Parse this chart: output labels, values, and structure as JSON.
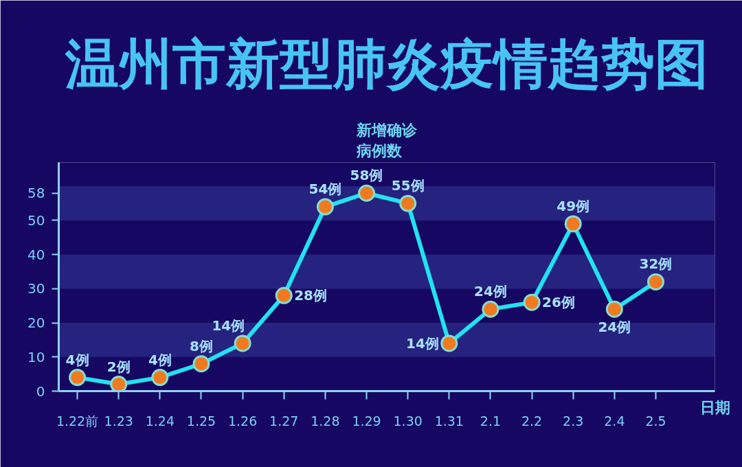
{
  "chart_data": {
    "type": "line",
    "title": "温州市新型肺炎疫情趋势图",
    "xlabel": "日期",
    "ylabel": "新增确诊病例数",
    "categories": [
      "1.22前",
      "1.23",
      "1.24",
      "1.25",
      "1.26",
      "1.27",
      "1.28",
      "1.29",
      "1.30",
      "1.31",
      "2.1",
      "2.2",
      "2.3",
      "2.4",
      "2.5"
    ],
    "values": [
      4,
      2,
      4,
      8,
      14,
      28,
      54,
      58,
      55,
      14,
      24,
      26,
      49,
      24,
      32
    ],
    "value_labels": [
      "4例",
      "2例",
      "4例",
      "8例",
      "14例",
      "28例",
      "54例",
      "58例",
      "55例",
      "14例",
      "24例",
      "26例",
      "49例",
      "24例",
      "32例"
    ],
    "color": "#22e2f0",
    "marker": "circle",
    "line_style": "solid",
    "ylim": [
      0,
      67
    ],
    "yticks": [
      0,
      10,
      20,
      30,
      40,
      50,
      58
    ],
    "bands": [
      {
        "axis": "y",
        "from": 10,
        "to": 20,
        "color": "#25237f"
      },
      {
        "axis": "y",
        "from": 30,
        "to": 40,
        "color": "#25237f"
      },
      {
        "axis": "y",
        "from": 50,
        "to": 60,
        "color": "#25237f"
      }
    ]
  }
}
